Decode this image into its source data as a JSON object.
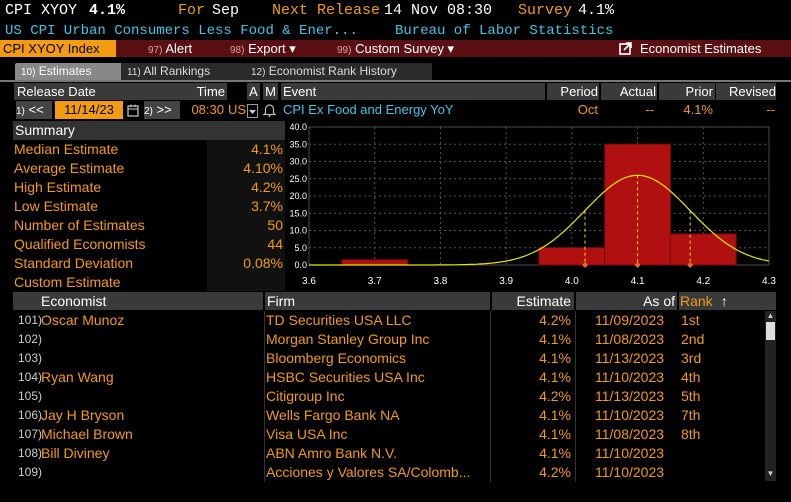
{
  "header": {
    "ticker": "CPI XYOY",
    "value": "4.1%",
    "for_label": "For",
    "for_value": "Sep",
    "next_release_label": "Next Release",
    "next_release_value": "14 Nov 08:30",
    "survey_label": "Survey",
    "survey_value": "4.1%",
    "description": "US CPI Urban Consumers Less Food & Ener...",
    "source": "Bureau of Labor Statistics"
  },
  "toolbar": {
    "security": "CPI XYOY Index",
    "alert_num": "97)",
    "alert_label": "Alert",
    "export_num": "98)",
    "export_label": "Export ▾",
    "survey_num": "99)",
    "survey_label": "Custom Survey ▾",
    "economist_label": "Economist Estimates"
  },
  "tabs": [
    {
      "num": "10)",
      "label": "Estimates"
    },
    {
      "num": "11)",
      "label": "All Rankings"
    },
    {
      "num": "12)",
      "label": "Economist Rank History"
    }
  ],
  "release_header": {
    "release_date": "Release Date",
    "time": "Time",
    "a": "A",
    "m": "M",
    "event": "Event",
    "period": "Period",
    "actual": "Actual",
    "prior": "Prior",
    "revised": "Revised"
  },
  "release_row": {
    "prev_num": "1)",
    "prev_btn": "<<",
    "date": "11/14/23",
    "next_num": "2)",
    "next_btn": ">>",
    "time": "08:30",
    "country": "US",
    "event": "CPI Ex Food and Energy YoY",
    "period": "Oct",
    "actual": "--",
    "prior": "4.1%",
    "revised": "--"
  },
  "summary": {
    "title": "Summary",
    "rows": [
      {
        "label": "Median Estimate",
        "value": "4.1%"
      },
      {
        "label": "Average Estimate",
        "value": "4.10%"
      },
      {
        "label": "High Estimate",
        "value": "4.2%"
      },
      {
        "label": "Low Estimate",
        "value": "3.7%"
      },
      {
        "label": "Number of Estimates",
        "value": "50"
      },
      {
        "label": "Qualified Economists",
        "value": "44"
      },
      {
        "label": "Standard Deviation",
        "value": "0.08%"
      },
      {
        "label": "Custom Estimate",
        "value": ""
      }
    ]
  },
  "chart_data": {
    "type": "bar",
    "x_ticks": [
      "3.6",
      "3.7",
      "3.8",
      "3.9",
      "4.0",
      "4.1",
      "4.2",
      "4.3"
    ],
    "y_ticks": [
      "0.0",
      "5.0",
      "10.0",
      "15.0",
      "20.0",
      "25.0",
      "30.0",
      "35.0",
      "40.0"
    ],
    "xlim": [
      3.6,
      4.3
    ],
    "ylim": [
      0,
      40
    ],
    "bins": [
      {
        "x0": 3.65,
        "x1": 3.75,
        "value": 1.5
      },
      {
        "x0": 3.95,
        "x1": 4.05,
        "value": 5
      },
      {
        "x0": 4.05,
        "x1": 4.15,
        "value": 35
      },
      {
        "x0": 4.15,
        "x1": 4.25,
        "value": 9
      }
    ],
    "normal_curve": {
      "mean": 4.1,
      "sd": 0.08,
      "peak": 26
    },
    "markers": [
      4.02,
      4.1,
      4.18
    ],
    "bar_color": "#b01010",
    "curve_color": "#e8e800"
  },
  "economists": {
    "headers": {
      "economist": "Economist",
      "firm": "Firm",
      "estimate": "Estimate",
      "as_of": "As of",
      "rank": "Rank",
      "sort": "↑"
    },
    "rows": [
      {
        "num": "101)",
        "name": "Oscar Munoz",
        "firm": "TD Securities USA LLC",
        "estimate": "4.2%",
        "as_of": "11/09/2023",
        "rank": "1st"
      },
      {
        "num": "102)",
        "name": "",
        "firm": "Morgan Stanley Group Inc",
        "estimate": "4.1%",
        "as_of": "11/08/2023",
        "rank": "2nd"
      },
      {
        "num": "103)",
        "name": "",
        "firm": "Bloomberg Economics",
        "estimate": "4.1%",
        "as_of": "11/13/2023",
        "rank": "3rd"
      },
      {
        "num": "104)",
        "name": "Ryan Wang",
        "firm": "HSBC Securities USA Inc",
        "estimate": "4.1%",
        "as_of": "11/10/2023",
        "rank": "4th"
      },
      {
        "num": "105)",
        "name": "",
        "firm": "Citigroup Inc",
        "estimate": "4.2%",
        "as_of": "11/13/2023",
        "rank": "5th"
      },
      {
        "num": "106)",
        "name": "Jay H Bryson",
        "firm": "Wells Fargo Bank NA",
        "estimate": "4.1%",
        "as_of": "11/10/2023",
        "rank": "7th"
      },
      {
        "num": "107)",
        "name": "Michael Brown",
        "firm": "Visa USA Inc",
        "estimate": "4.1%",
        "as_of": "11/08/2023",
        "rank": "8th"
      },
      {
        "num": "108)",
        "name": "Bill Diviney",
        "firm": "ABN Amro Bank N.V.",
        "estimate": "4.1%",
        "as_of": "11/10/2023",
        "rank": ""
      },
      {
        "num": "109)",
        "name": "",
        "firm": "Acciones y Valores SA/Colomb...",
        "estimate": "4.2%",
        "as_of": "11/10/2023",
        "rank": ""
      }
    ]
  }
}
